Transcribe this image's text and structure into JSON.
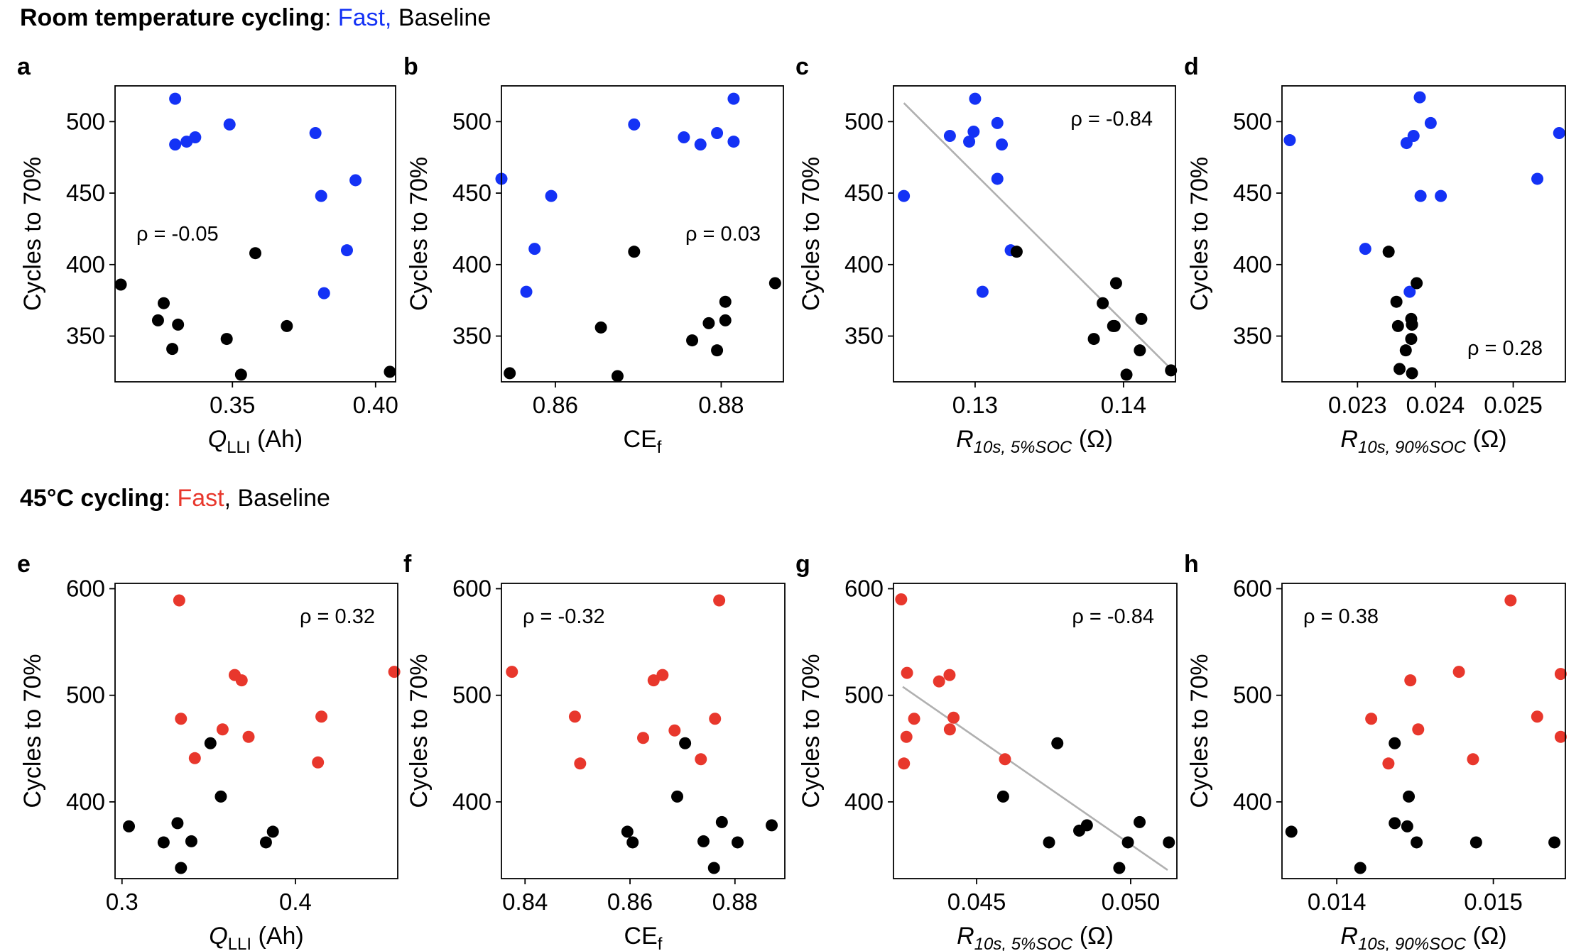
{
  "rows": [
    {
      "title_bold": "Room temperature cycling",
      "title_sep": ": ",
      "fast_label": "Fast,",
      "baseline_label": " Baseline",
      "fast_color": "#1432f5",
      "baseline_color": "#000000"
    },
    {
      "title_bold": "45°C cycling",
      "title_sep": ": ",
      "fast_label": "Fast",
      "baseline_label": ", Baseline",
      "fast_color": "#e8372c",
      "baseline_color": "#000000"
    }
  ],
  "chart_data": [
    {
      "type": "scatter",
      "panel": "a",
      "ylabel": "Cycles to 70%",
      "xlabel": {
        "main": "Q",
        "sub": "LLI",
        "suffix": " (Ah)"
      },
      "xlim": [
        0.309,
        0.407
      ],
      "ylim": [
        318,
        525
      ],
      "xticks": [
        {
          "v": 0.35,
          "label": "0.35"
        },
        {
          "v": 0.4,
          "label": "0.40"
        }
      ],
      "yticks": [
        {
          "v": 350,
          "label": "350"
        },
        {
          "v": 400,
          "label": "400"
        },
        {
          "v": 450,
          "label": "450"
        },
        {
          "v": 500,
          "label": "500"
        }
      ],
      "rho": {
        "label": "ρ = -0.05",
        "position": "mid-left"
      },
      "fit": null,
      "series": [
        {
          "name": "Fast",
          "color": "#1432f5",
          "x": [
            0.33,
            0.33,
            0.334,
            0.337,
            0.349,
            0.379,
            0.381,
            0.393,
            0.39,
            0.382
          ],
          "y": [
            516,
            484,
            486,
            489,
            498,
            492,
            448,
            459,
            410,
            380
          ]
        },
        {
          "name": "Baseline",
          "color": "#000000",
          "x": [
            0.311,
            0.324,
            0.326,
            0.329,
            0.331,
            0.348,
            0.358,
            0.369,
            0.353,
            0.405
          ],
          "y": [
            386,
            361,
            373,
            341,
            358,
            348,
            408,
            357,
            323,
            325
          ]
        }
      ]
    },
    {
      "type": "scatter",
      "panel": "b",
      "ylabel": "Cycles to 70%",
      "xlabel": {
        "main": "CE",
        "sub": "f",
        "suffix": ""
      },
      "xlim": [
        0.8535,
        0.8875
      ],
      "ylim": [
        318,
        525
      ],
      "xticks": [
        {
          "v": 0.86,
          "label": "0.86"
        },
        {
          "v": 0.88,
          "label": "0.88"
        }
      ],
      "yticks": [
        {
          "v": 350,
          "label": "350"
        },
        {
          "v": 400,
          "label": "400"
        },
        {
          "v": 450,
          "label": "450"
        },
        {
          "v": 500,
          "label": "500"
        }
      ],
      "rho": {
        "label": "ρ = 0.03",
        "position": "mid-right"
      },
      "fit": null,
      "series": [
        {
          "name": "Fast",
          "color": "#1432f5",
          "x": [
            0.8815,
            0.8695,
            0.8755,
            0.8815,
            0.8535,
            0.8595,
            0.8575,
            0.8565,
            0.8775,
            0.8795
          ],
          "y": [
            516,
            498,
            489,
            486,
            460,
            448,
            411,
            381,
            484,
            492
          ]
        },
        {
          "name": "Baseline",
          "color": "#000000",
          "x": [
            0.8545,
            0.8655,
            0.8675,
            0.8695,
            0.8765,
            0.8785,
            0.8795,
            0.8805,
            0.8805,
            0.8865
          ],
          "y": [
            324,
            356,
            322,
            409,
            347,
            359,
            340,
            374,
            361,
            387
          ]
        }
      ]
    },
    {
      "type": "scatter",
      "panel": "c",
      "ylabel": "Cycles to 70%",
      "xlabel": {
        "main": "R",
        "sub": "10s, 5%SOC",
        "suffix": " (Ω)"
      },
      "xlim": [
        0.1245,
        0.1435
      ],
      "ylim": [
        318,
        525
      ],
      "xticks": [
        {
          "v": 0.13,
          "label": "0.13"
        },
        {
          "v": 0.14,
          "label": "0.14"
        }
      ],
      "yticks": [
        {
          "v": 350,
          "label": "350"
        },
        {
          "v": 400,
          "label": "400"
        },
        {
          "v": 450,
          "label": "450"
        },
        {
          "v": 500,
          "label": "500"
        }
      ],
      "rho": {
        "label": "ρ = -0.84",
        "position": "top-right"
      },
      "fit": {
        "x": [
          0.1252,
          0.1432
        ],
        "y": [
          513,
          327
        ]
      },
      "series": [
        {
          "name": "Fast",
          "color": "#1432f5",
          "x": [
            0.13,
            0.1283,
            0.1299,
            0.1296,
            0.1315,
            0.1318,
            0.1315,
            0.1252,
            0.1324,
            0.1305
          ],
          "y": [
            516,
            490,
            493,
            486,
            499,
            484,
            460,
            448,
            410,
            381
          ]
        },
        {
          "name": "Baseline",
          "color": "#000000",
          "x": [
            0.1328,
            0.1395,
            0.1386,
            0.1393,
            0.138,
            0.1394,
            0.1412,
            0.1411,
            0.1402,
            0.1432
          ],
          "y": [
            409,
            387,
            373,
            357,
            348,
            357,
            362,
            340,
            323,
            326
          ]
        }
      ]
    },
    {
      "type": "scatter",
      "panel": "d",
      "ylabel": "Cycles to 70%",
      "xlabel": {
        "main": "R",
        "sub": "10s, 90%SOC",
        "suffix": " (Ω)"
      },
      "xlim": [
        0.02203,
        0.02567
      ],
      "ylim": [
        318,
        525
      ],
      "xticks": [
        {
          "v": 0.023,
          "label": "0.023"
        },
        {
          "v": 0.024,
          "label": "0.024"
        },
        {
          "v": 0.025,
          "label": "0.025"
        }
      ],
      "yticks": [
        {
          "v": 350,
          "label": "350"
        },
        {
          "v": 400,
          "label": "400"
        },
        {
          "v": 450,
          "label": "450"
        },
        {
          "v": 500,
          "label": "500"
        }
      ],
      "rho": {
        "label": "ρ = 0.28",
        "position": "bottom-right"
      },
      "fit": null,
      "series": [
        {
          "name": "Fast",
          "color": "#1432f5",
          "x": [
            0.02213,
            0.02363,
            0.02372,
            0.0238,
            0.02394,
            0.02407,
            0.02559,
            0.02531,
            0.02381,
            0.0231,
            0.02367
          ],
          "y": [
            487,
            485,
            490,
            517,
            499,
            448,
            492,
            460,
            448,
            411,
            381
          ]
        },
        {
          "name": "Baseline",
          "color": "#000000",
          "x": [
            0.0234,
            0.0235,
            0.02376,
            0.02369,
            0.02352,
            0.0237,
            0.02369,
            0.02362,
            0.02354,
            0.0237,
            0.0237
          ],
          "y": [
            409,
            374,
            387,
            362,
            357,
            358,
            348,
            340,
            327,
            324,
            358
          ]
        }
      ]
    },
    {
      "type": "scatter",
      "panel": "e",
      "ylabel": "Cycles to 70%",
      "xlabel": {
        "main": "Q",
        "sub": "LLI",
        "suffix": " (Ah)"
      },
      "xlim": [
        0.296,
        0.459
      ],
      "ylim": [
        328,
        605
      ],
      "xticks": [
        {
          "v": 0.3,
          "label": "0.3"
        },
        {
          "v": 0.4,
          "label": "0.4"
        }
      ],
      "yticks": [
        {
          "v": 400,
          "label": "400"
        },
        {
          "v": 500,
          "label": "500"
        },
        {
          "v": 600,
          "label": "600"
        }
      ],
      "rho": {
        "label": "ρ = 0.32",
        "position": "top-right"
      },
      "fit": null,
      "series": [
        {
          "name": "Fast",
          "color": "#e8372c",
          "x": [
            0.333,
            0.334,
            0.342,
            0.358,
            0.365,
            0.369,
            0.373,
            0.413,
            0.415,
            0.457
          ],
          "y": [
            589,
            478,
            441,
            468,
            519,
            514,
            461,
            437,
            480,
            522
          ]
        },
        {
          "name": "Baseline",
          "color": "#000000",
          "x": [
            0.304,
            0.324,
            0.332,
            0.334,
            0.34,
            0.351,
            0.357,
            0.383,
            0.387
          ],
          "y": [
            377,
            362,
            380,
            338,
            363,
            455,
            405,
            362,
            372
          ]
        }
      ]
    },
    {
      "type": "scatter",
      "panel": "f",
      "ylabel": "Cycles to 70%",
      "xlabel": {
        "main": "CE",
        "sub": "f",
        "suffix": ""
      },
      "xlim": [
        0.8355,
        0.8895
      ],
      "ylim": [
        328,
        605
      ],
      "xticks": [
        {
          "v": 0.84,
          "label": "0.84"
        },
        {
          "v": 0.86,
          "label": "0.86"
        },
        {
          "v": 0.88,
          "label": "0.88"
        }
      ],
      "yticks": [
        {
          "v": 400,
          "label": "400"
        },
        {
          "v": 500,
          "label": "500"
        },
        {
          "v": 600,
          "label": "600"
        }
      ],
      "rho": {
        "label": "ρ = -0.32",
        "position": "top-left"
      },
      "fit": null,
      "series": [
        {
          "name": "Fast",
          "color": "#e8372c",
          "x": [
            0.8375,
            0.8495,
            0.8505,
            0.8625,
            0.8645,
            0.8662,
            0.8685,
            0.8735,
            0.8762,
            0.877
          ],
          "y": [
            522,
            480,
            436,
            460,
            514,
            519,
            467,
            440,
            478,
            589
          ]
        },
        {
          "name": "Baseline",
          "color": "#000000",
          "x": [
            0.8595,
            0.8605,
            0.869,
            0.8705,
            0.874,
            0.876,
            0.8775,
            0.8805,
            0.887
          ],
          "y": [
            372,
            362,
            405,
            455,
            363,
            338,
            381,
            362,
            378
          ]
        }
      ]
    },
    {
      "type": "scatter",
      "panel": "g",
      "ylabel": "Cycles to 70%",
      "xlabel": {
        "main": "R",
        "sub": "10s, 5%SOC",
        "suffix": " (Ω)"
      },
      "xlim": [
        0.0423,
        0.0515
      ],
      "ylim": [
        328,
        605
      ],
      "xticks": [
        {
          "v": 0.045,
          "label": "0.045"
        },
        {
          "v": 0.05,
          "label": "0.050"
        }
      ],
      "yticks": [
        {
          "v": 400,
          "label": "400"
        },
        {
          "v": 500,
          "label": "500"
        },
        {
          "v": 600,
          "label": "600"
        }
      ],
      "rho": {
        "label": "ρ = -0.84",
        "position": "top-right"
      },
      "fit": {
        "x": [
          0.0426,
          0.0512
        ],
        "y": [
          508,
          336
        ]
      },
      "series": [
        {
          "name": "Fast",
          "color": "#e8372c",
          "x": [
            0.04255,
            0.04274,
            0.04272,
            0.04264,
            0.04297,
            0.04378,
            0.04412,
            0.04425,
            0.04413,
            0.04592
          ],
          "y": [
            590,
            521,
            461,
            436,
            478,
            513,
            519,
            479,
            468,
            440
          ]
        },
        {
          "name": "Baseline",
          "color": "#000000",
          "x": [
            0.04586,
            0.04735,
            0.04762,
            0.04833,
            0.04858,
            0.04963,
            0.04991,
            0.05029,
            0.05124
          ],
          "y": [
            405,
            362,
            455,
            373,
            378,
            338,
            362,
            381,
            362
          ]
        }
      ]
    },
    {
      "type": "scatter",
      "panel": "h",
      "ylabel": "Cycles to 70%",
      "xlabel": {
        "main": "R",
        "sub": "10s, 90%SOC",
        "suffix": " (Ω)"
      },
      "xlim": [
        0.01365,
        0.01546
      ],
      "ylim": [
        328,
        605
      ],
      "xticks": [
        {
          "v": 0.014,
          "label": "0.014"
        },
        {
          "v": 0.015,
          "label": "0.015"
        }
      ],
      "yticks": [
        {
          "v": 400,
          "label": "400"
        },
        {
          "v": 500,
          "label": "500"
        },
        {
          "v": 600,
          "label": "600"
        }
      ],
      "rho": {
        "label": "ρ = 0.38",
        "position": "top-left"
      },
      "fit": null,
      "series": [
        {
          "name": "Fast",
          "color": "#e8372c",
          "x": [
            0.01422,
            0.01433,
            0.01447,
            0.01452,
            0.01478,
            0.01487,
            0.01511,
            0.01528,
            0.01543,
            0.01543
          ],
          "y": [
            478,
            436,
            514,
            468,
            522,
            440,
            589,
            480,
            520,
            461
          ]
        },
        {
          "name": "Baseline",
          "color": "#000000",
          "x": [
            0.01371,
            0.01415,
            0.01437,
            0.01437,
            0.01445,
            0.01446,
            0.01451,
            0.01489,
            0.01539
          ],
          "y": [
            372,
            338,
            455,
            380,
            377,
            405,
            362,
            362,
            362
          ]
        }
      ]
    }
  ]
}
